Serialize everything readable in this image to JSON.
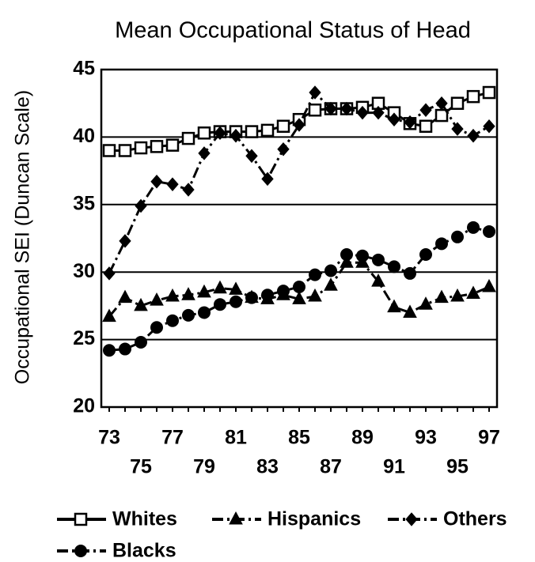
{
  "chart_data": {
    "type": "line",
    "title": "Mean Occupational Status of Head",
    "y_label": "Occupational SEI (Duncan Scale)",
    "categories": [
      "73",
      null,
      "75",
      null,
      "77",
      null,
      "79",
      null,
      "81",
      null,
      "83",
      null,
      "85",
      null,
      "87",
      null,
      "89",
      null,
      "91",
      null,
      "93",
      null,
      "95",
      null,
      "97"
    ],
    "ylim": [
      20,
      45
    ],
    "yticks": [
      20,
      25,
      30,
      35,
      40,
      45
    ],
    "grid": true,
    "series": [
      {
        "name": "Whites",
        "color": "#000000",
        "marker": "square",
        "dash": "solid",
        "values": [
          39.0,
          39.0,
          39.2,
          39.3,
          39.4,
          39.9,
          40.3,
          40.4,
          40.4,
          40.4,
          40.5,
          40.8,
          41.3,
          42.0,
          42.1,
          42.1,
          42.2,
          42.5,
          41.8,
          41.0,
          40.8,
          41.6,
          42.5,
          43.0,
          43.3
        ]
      },
      {
        "name": "Hispanics",
        "color": "#000000",
        "marker": "triangle",
        "dash": "dashdot",
        "values": [
          26.7,
          28.1,
          27.5,
          27.9,
          28.2,
          28.3,
          28.5,
          28.8,
          28.7,
          28.1,
          28.0,
          28.3,
          28.0,
          28.2,
          29.0,
          30.7,
          30.7,
          29.3,
          27.4,
          27.0,
          27.6,
          28.1,
          28.2,
          28.4,
          28.9
        ]
      },
      {
        "name": "Others",
        "color": "#000000",
        "marker": "diamond",
        "dash": "dashdot",
        "values": [
          29.9,
          32.3,
          34.9,
          36.7,
          36.5,
          36.1,
          38.8,
          40.3,
          40.1,
          38.6,
          36.9,
          39.1,
          40.9,
          43.3,
          42.1,
          42.1,
          41.8,
          41.8,
          41.3,
          41.1,
          42.0,
          42.5,
          40.6,
          40.1,
          40.8
        ]
      },
      {
        "name": "Blacks",
        "color": "#000000",
        "marker": "circle",
        "dash": "dashdot",
        "values": [
          24.2,
          24.3,
          24.8,
          25.9,
          26.4,
          26.8,
          27.0,
          27.6,
          27.8,
          28.1,
          28.3,
          28.6,
          28.9,
          29.8,
          30.1,
          31.3,
          31.2,
          30.9,
          30.4,
          29.9,
          31.3,
          32.1,
          32.6,
          33.3,
          33.0
        ]
      }
    ]
  }
}
